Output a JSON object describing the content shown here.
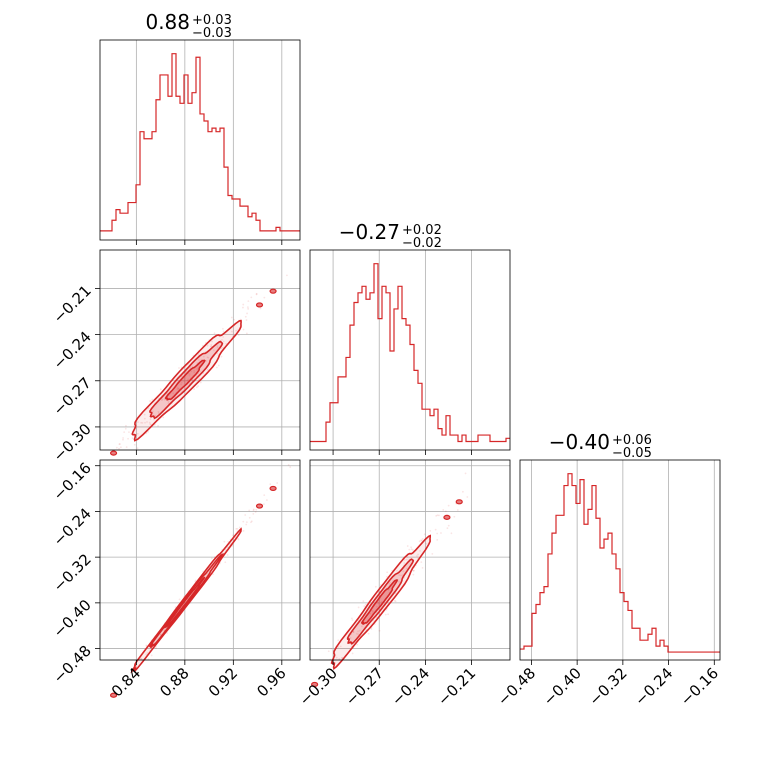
{
  "chart_data": {
    "type": "corner",
    "color": "#d62728",
    "grid": true,
    "parameters": [
      {
        "title": {
          "median": "0.88",
          "plus": "+0.03",
          "minus": "−0.03"
        },
        "range": [
          0.81,
          0.975
        ],
        "ticks": [
          0.84,
          0.88,
          0.92,
          0.96
        ],
        "tick_labels": [
          "0.84",
          "0.88",
          "0.92",
          "0.96"
        ],
        "hist": {
          "edges": [
            0.81,
            0.975
          ],
          "counts": [
            2,
            2,
            2,
            5,
            8,
            7,
            7,
            10,
            10,
            15,
            30,
            28,
            28,
            30,
            39,
            46,
            46,
            40,
            52,
            40,
            38,
            46,
            38,
            41,
            51,
            35,
            33,
            30,
            31,
            30,
            31,
            20,
            12,
            11,
            11,
            9,
            9,
            6,
            7,
            5,
            2,
            2,
            2,
            2,
            3,
            2,
            2,
            2,
            2,
            2
          ]
        }
      },
      {
        "title": {
          "median": "−0.27",
          "plus": "+0.02",
          "minus": "−0.02"
        },
        "range": [
          -0.315,
          -0.185
        ],
        "ticks": [
          -0.3,
          -0.27,
          -0.24,
          -0.21
        ],
        "tick_labels": [
          "−0.30",
          "−0.27",
          "−0.24",
          "−0.21"
        ],
        "hist": {
          "edges": [
            -0.315,
            -0.185
          ],
          "counts": [
            2,
            2,
            2,
            2,
            8,
            14,
            14,
            22,
            22,
            28,
            38,
            45,
            48,
            50,
            46,
            48,
            57,
            40,
            50,
            48,
            30,
            43,
            50,
            40,
            38,
            32,
            24,
            20,
            12,
            12,
            10,
            12,
            6,
            4,
            10,
            4,
            4,
            2,
            4,
            2,
            2,
            2,
            4,
            4,
            4,
            2,
            2,
            2,
            2,
            3
          ]
        }
      },
      {
        "title": {
          "median": "−0.40",
          "plus": "+0.06",
          "minus": "−0.05"
        },
        "range": [
          -0.5,
          -0.15
        ],
        "ticks": [
          -0.48,
          -0.4,
          -0.32,
          -0.24,
          -0.16
        ],
        "tick_labels": [
          "−0.48",
          "−0.40",
          "−0.32",
          "−0.24",
          "−0.16"
        ],
        "hist": {
          "edges": [
            -0.5,
            -0.15
          ],
          "counts": [
            3,
            4,
            4,
            15,
            18,
            22,
            24,
            35,
            42,
            48,
            48,
            58,
            62,
            58,
            52,
            60,
            45,
            50,
            58,
            47,
            37,
            40,
            42,
            35,
            30,
            22,
            19,
            16,
            10,
            10,
            6,
            6,
            8,
            10,
            4,
            6,
            4,
            2,
            2,
            2,
            2,
            2,
            2,
            2,
            2,
            2,
            2,
            2,
            2,
            2
          ]
        }
      }
    ],
    "contour_pairs": [
      {
        "x_param": 0,
        "y_param": 1,
        "relation": "y = -0.27 + 0.80*(x - 0.88)",
        "levels": [
          0.393,
          0.865,
          0.989
        ]
      },
      {
        "x_param": 0,
        "y_param": 2,
        "relation": "y = -0.40 + 2.75*(x - 0.88)",
        "levels": [
          0.393,
          0.865,
          0.989
        ]
      },
      {
        "x_param": 1,
        "y_param": 2,
        "relation": "y = -0.40 + 3.4*(x + 0.27)",
        "levels": [
          0.393,
          0.865,
          0.989
        ]
      }
    ]
  }
}
